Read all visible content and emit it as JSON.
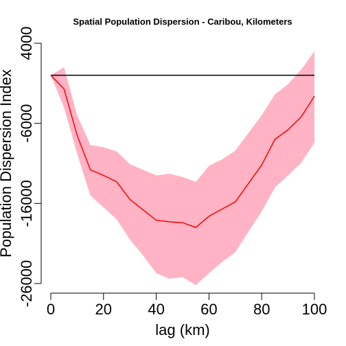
{
  "chart_data": {
    "type": "line",
    "title": "Spatial Population Dispersion - Caribou, Kilometers",
    "xlabel": "lag (km)",
    "ylabel": "Population Dispersion Index",
    "xlim": [
      0,
      100
    ],
    "ylim": [
      -26000,
      4000
    ],
    "x_ticks": [
      0,
      20,
      40,
      60,
      80,
      100
    ],
    "y_ticks": [
      4000,
      -6000,
      -16000,
      -26000
    ],
    "colors": {
      "line": "#ff0000",
      "band": "#ffb3c4",
      "reference": "#000000"
    },
    "reference_line": {
      "y": 0
    },
    "series": [
      {
        "x": [
          0,
          5,
          10,
          15,
          20,
          25,
          30,
          35,
          40,
          45,
          50,
          55,
          60,
          65,
          70,
          75,
          80,
          85,
          90,
          95,
          100
        ],
        "values": [
          0,
          -1700,
          -7500,
          -11800,
          -12500,
          -13300,
          -15500,
          -16800,
          -18100,
          -18300,
          -18400,
          -19000,
          -17600,
          -16700,
          -15800,
          -13500,
          -11200,
          -8000,
          -6800,
          -5200,
          -2600
        ],
        "band_upper": [
          0,
          1000,
          -5000,
          -8700,
          -9000,
          -9500,
          -11100,
          -11800,
          -12500,
          -12300,
          -12700,
          -13300,
          -11300,
          -10500,
          -9400,
          -7200,
          -5000,
          -2400,
          -1100,
          700,
          3000
        ],
        "band_lower": [
          0,
          -4000,
          -9800,
          -15000,
          -16500,
          -18000,
          -20500,
          -22500,
          -24700,
          -25400,
          -25200,
          -26200,
          -24700,
          -23300,
          -22100,
          -19500,
          -17000,
          -14000,
          -12500,
          -10900,
          -8400
        ]
      }
    ]
  }
}
